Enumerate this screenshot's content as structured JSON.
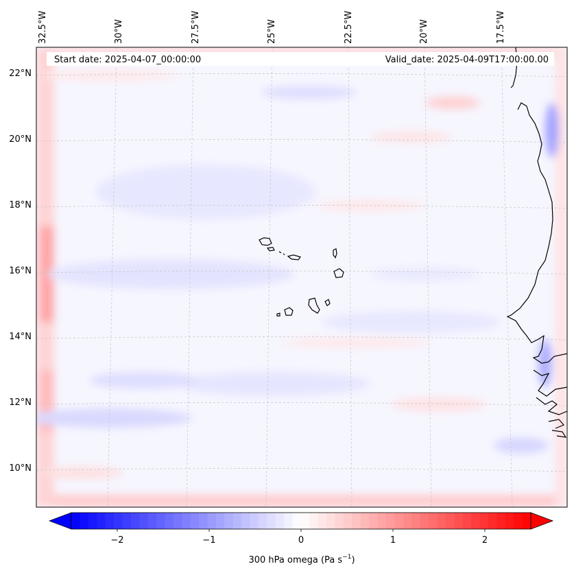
{
  "header": {
    "start_date": "Start date: 2025-04-07_00:00:00",
    "valid_date": "Valid_date: 2025-04-09T17:00:00.00"
  },
  "axes": {
    "longitude_labels": [
      "32.5°W",
      "30°W",
      "27.5°W",
      "25°W",
      "22.5°W",
      "20°W",
      "17.5°W"
    ],
    "latitude_labels": [
      "22°N",
      "20°N",
      "18°N",
      "16°N",
      "14°N",
      "12°N",
      "10°N"
    ]
  },
  "colorbar": {
    "label": "300 hPa omega (Pa s",
    "label_exponent": "−1",
    "label_close": ")",
    "ticks": [
      "−2",
      "−1",
      "0",
      "1",
      "2"
    ],
    "vmin": -2.7,
    "vmax": 2.7,
    "levels": 54,
    "colormap": "bwr",
    "negative_color": "#0000ff",
    "neutral_color": "#ffffff",
    "positive_color": "#ff0000"
  },
  "colors": {
    "background_field": "#f6f6ff",
    "coastline": "#000000",
    "gridline": "#c8c8c8"
  }
}
